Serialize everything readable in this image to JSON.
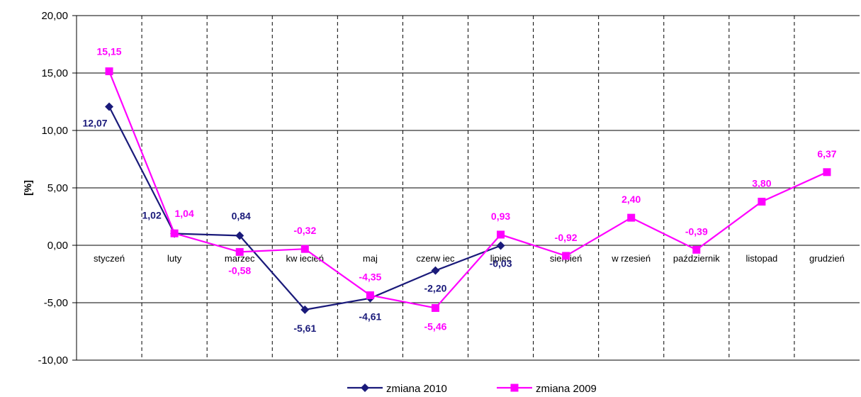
{
  "chart_data": {
    "type": "line",
    "ylabel": "[%]",
    "ylim": [
      -10,
      20
    ],
    "y_ticks": [
      "20,00",
      "15,00",
      "10,00",
      "5,00",
      "0,00",
      "-5,00",
      "-10,00"
    ],
    "y_tick_values": [
      20,
      15,
      10,
      5,
      0,
      -5,
      -10
    ],
    "categories": [
      "styczeń",
      "luty",
      "marzec",
      "kw iecień",
      "maj",
      "czerw iec",
      "lipiec",
      "sierpień",
      "w rzesień",
      "październik",
      "listopad",
      "grudzień"
    ],
    "grid": {
      "horizontal": "solid",
      "vertical": "dashed"
    },
    "legend_position": "bottom",
    "series": [
      {
        "name": "zmiana 2010",
        "color": "#1a1a7a",
        "marker": "diamond",
        "values": [
          12.07,
          1.02,
          0.84,
          -5.61,
          -4.61,
          -2.2,
          -0.03,
          null,
          null,
          null,
          null,
          null
        ],
        "labels": [
          "12,07",
          "1,02",
          "0,84",
          "-5,61",
          "-4,61",
          "-2,20",
          "-0,03",
          "",
          "",
          "",
          "",
          ""
        ]
      },
      {
        "name": "zmiana 2009",
        "color": "#ff00ff",
        "marker": "square",
        "values": [
          15.15,
          1.04,
          -0.58,
          -0.32,
          -4.35,
          -5.46,
          0.93,
          -0.92,
          2.4,
          -0.39,
          3.8,
          6.37
        ],
        "labels": [
          "15,15",
          "1,04",
          "-0,58",
          "-0,32",
          "-4,35",
          "-5,46",
          "0,93",
          "-0,92",
          "2,40",
          "-0,39",
          "3,80",
          "6,37"
        ]
      }
    ]
  }
}
